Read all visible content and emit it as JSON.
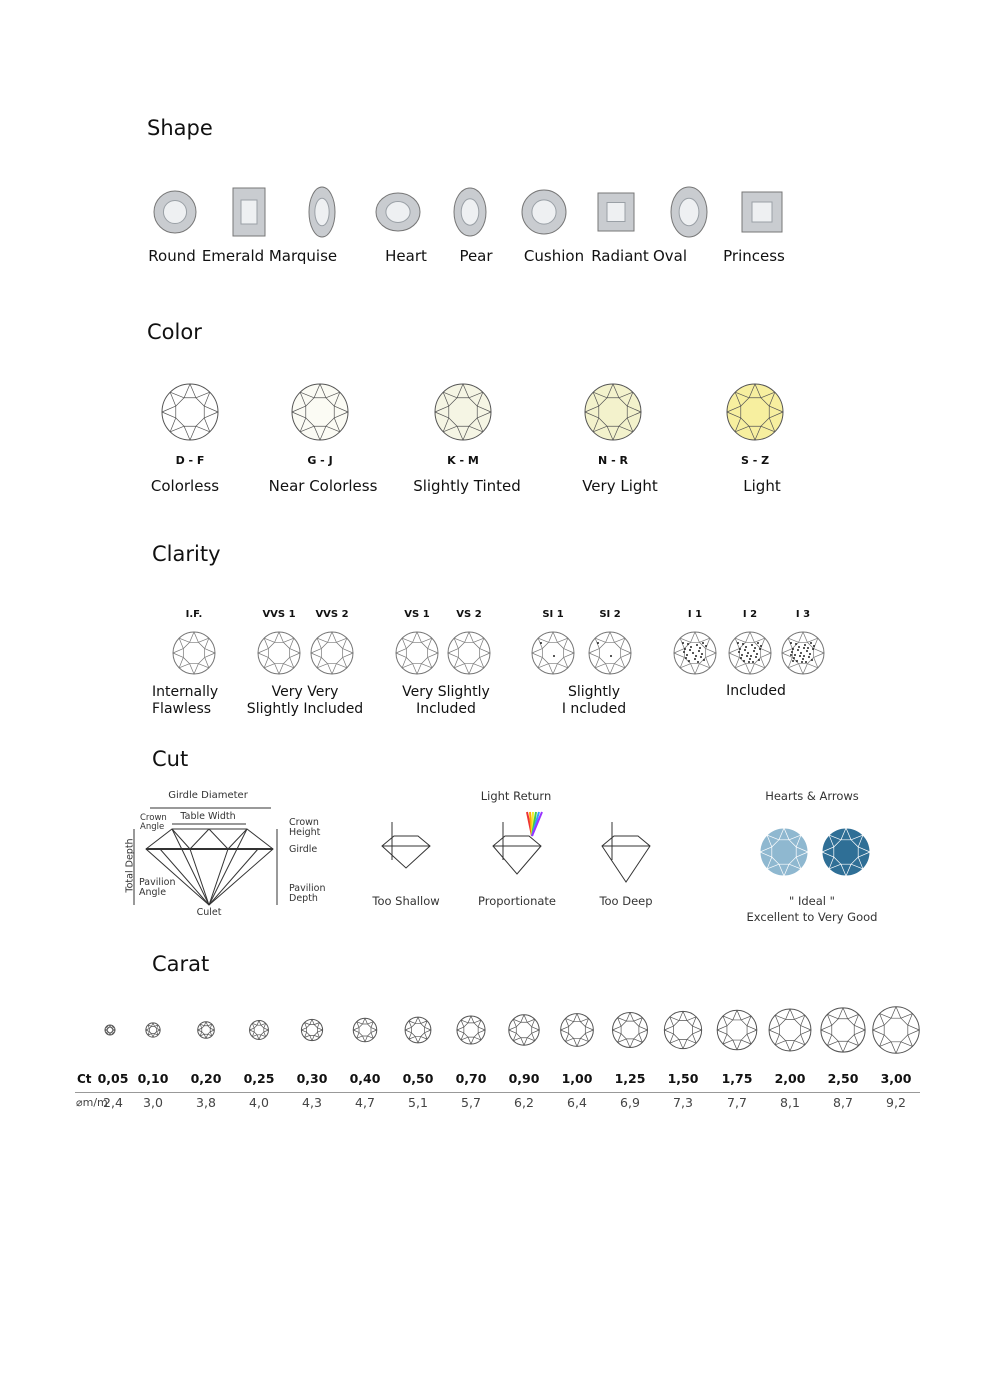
{
  "shape": {
    "title": "Shape",
    "items": [
      "Round",
      "Emerald",
      "Marquise",
      "Heart",
      "Pear",
      "Cushion",
      "Radiant",
      "Oval",
      "Princess"
    ]
  },
  "color": {
    "title": "Color",
    "items": [
      {
        "code": "D - F",
        "name": "Colorless",
        "fill": "#ffffff"
      },
      {
        "code": "G - J",
        "name": "Near Colorless",
        "fill": "#fbfbf4"
      },
      {
        "code": "K - M",
        "name": "Slightly Tinted",
        "fill": "#f5f5e4"
      },
      {
        "code": "N - R",
        "name": "Very Light",
        "fill": "#f3f2cc"
      },
      {
        "code": "S - Z",
        "name": "Light",
        "fill": "#f7ef9f"
      }
    ]
  },
  "clarity": {
    "title": "Clarity",
    "grades": [
      "I.F.",
      "VVS 1",
      "VVS 2",
      "VS 1",
      "VS 2",
      "SI 1",
      "SI 2",
      "I 1",
      "I 2",
      "I 3"
    ],
    "groups": [
      {
        "l1": "Internally",
        "l2": "Flawless"
      },
      {
        "l1": "Very Very",
        "l2": "Slightly Included"
      },
      {
        "l1": "Very Slightly",
        "l2": "Included"
      },
      {
        "l1": "Slightly",
        "l2": "I ncluded"
      },
      {
        "l1": "Included",
        "l2": ""
      }
    ]
  },
  "cut": {
    "title": "Cut",
    "anatomy": {
      "girdle_diameter": "Girdle Diameter",
      "table_width": "Table Width",
      "crown_angle": "Crown Angle",
      "crown_height": "Crown Height",
      "girdle": "Girdle",
      "total_depth": "Total Depth",
      "pavilion_angle": "Pavilion Angle",
      "pavilion_depth": "Pavilion Depth",
      "culet": "Culet"
    },
    "light_return": "Light Return",
    "types": [
      "Too Shallow",
      "Proportionate",
      "Too Deep"
    ],
    "hearts_arrows": "Hearts & Arrows",
    "ideal": "\" Ideal \"",
    "grade": "Excellent to Very Good"
  },
  "carat": {
    "title": "Carat",
    "ct_label": "Ct",
    "mm_label": "⌀m/m",
    "ct": [
      "0,05",
      "0,10",
      "0,20",
      "0,25",
      "0,30",
      "0,40",
      "0,50",
      "0,70",
      "0,90",
      "1,00",
      "1,25",
      "1,50",
      "1,75",
      "2,00",
      "2,50",
      "3,00"
    ],
    "mm": [
      "2,4",
      "3,0",
      "3,8",
      "4,0",
      "4,3",
      "4,7",
      "5,1",
      "5,7",
      "6,2",
      "6,4",
      "6,9",
      "7,3",
      "7,7",
      "8,1",
      "8,7",
      "9,2"
    ]
  }
}
